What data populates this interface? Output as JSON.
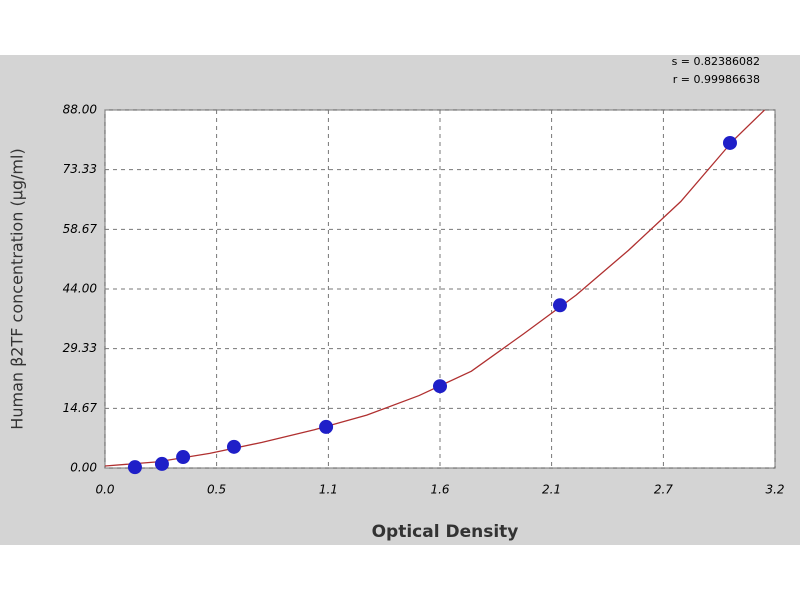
{
  "chart_data": {
    "type": "scatter",
    "x_label": "Optical Density",
    "y_label": "Human β2TF concentration (μg/ml)",
    "annotations": [
      "s = 0.82386082",
      "r = 0.99986638"
    ],
    "xlim": [
      0,
      3.2
    ],
    "ylim": [
      0,
      88
    ],
    "xticks": [
      {
        "value": 0,
        "label": "0.0"
      },
      {
        "value": 0.533,
        "label": "0.5"
      },
      {
        "value": 1.067,
        "label": "1.1"
      },
      {
        "value": 1.6,
        "label": "1.6"
      },
      {
        "value": 2.133,
        "label": "2.1"
      },
      {
        "value": 2.667,
        "label": "2.7"
      },
      {
        "value": 3.2,
        "label": "3.2"
      }
    ],
    "yticks": [
      {
        "value": 0,
        "label": "0.00"
      },
      {
        "value": 14.67,
        "label": "14.67"
      },
      {
        "value": 29.33,
        "label": "29.33"
      },
      {
        "value": 44,
        "label": "44.00"
      },
      {
        "value": 58.67,
        "label": "58.67"
      },
      {
        "value": 73.33,
        "label": "73.33"
      },
      {
        "value": 88,
        "label": "88.00"
      }
    ],
    "grid": true,
    "series": [
      {
        "color": "#1f1fc8",
        "x": [
          0.143,
          0.272,
          0.373,
          0.616,
          1.056,
          1.6,
          2.173,
          2.985
        ],
        "values": [
          0.2,
          1.0,
          2.7,
          5.2,
          10.1,
          20.1,
          40.0,
          79.9
        ]
      }
    ],
    "fit": {
      "color": "#b03030",
      "x": [
        0,
        0.25,
        0.5,
        0.75,
        1.0,
        1.25,
        1.5,
        1.75,
        2.0,
        2.25,
        2.5,
        2.75,
        3.0,
        3.15
      ],
      "values": [
        0.5,
        1.5,
        3.6,
        6.3,
        9.4,
        13.0,
        17.8,
        23.8,
        33.0,
        42.5,
        53.5,
        65.5,
        80.5,
        88
      ]
    }
  }
}
